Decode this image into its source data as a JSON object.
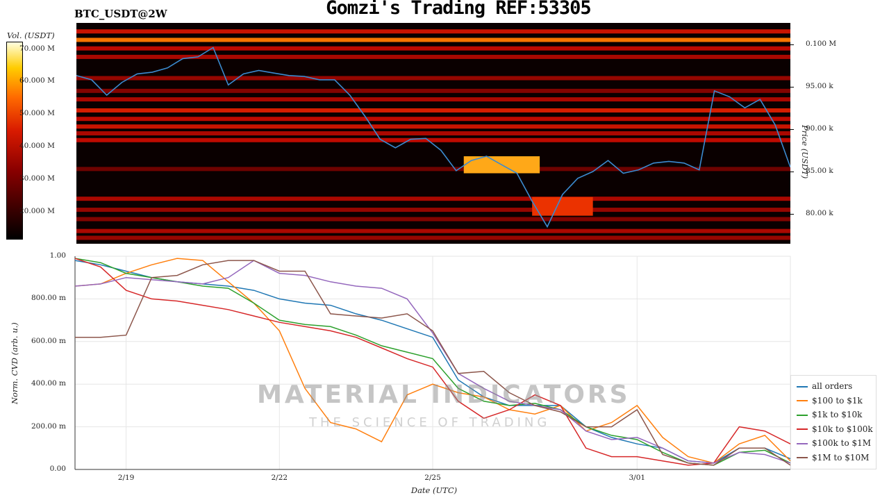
{
  "header": {
    "title": "Gomzi's Trading REF:53305",
    "symbol": "BTC_USDT@2W"
  },
  "colorbar": {
    "label": "Vol. (USDT)",
    "ticks": [
      "70.000 M",
      "60.000 M",
      "50.000 M",
      "40.000 M",
      "30.000 M",
      "20.000 M"
    ]
  },
  "watermark": {
    "main": "MATERIAL INDICATORS",
    "sub": "THE SCIENCE OF TRADING"
  },
  "chart_data": [
    {
      "type": "heatmap",
      "ylabel": "Price (USDT)",
      "yticks": [
        "0.100 M",
        "95.00 k",
        "90.00 k",
        "85.00 k",
        "80.00 k"
      ],
      "ylim": [
        76500,
        102500
      ],
      "colorbar_range": [
        13000,
        73000
      ],
      "price_series": {
        "color": "#3b8bd0",
        "points": [
          [
            0,
            96300
          ],
          [
            1,
            95800
          ],
          [
            2,
            94000
          ],
          [
            3,
            95500
          ],
          [
            4,
            96500
          ],
          [
            5,
            96700
          ],
          [
            6,
            97200
          ],
          [
            7,
            98300
          ],
          [
            8,
            98500
          ],
          [
            9,
            99600
          ],
          [
            10,
            95200
          ],
          [
            11,
            96500
          ],
          [
            12,
            96900
          ],
          [
            13,
            96600
          ],
          [
            14,
            96300
          ],
          [
            15,
            96200
          ],
          [
            16,
            95800
          ],
          [
            17,
            95800
          ],
          [
            18,
            94000
          ],
          [
            19,
            91500
          ],
          [
            20,
            88800
          ],
          [
            21,
            87800
          ],
          [
            22,
            88800
          ],
          [
            23,
            88900
          ],
          [
            24,
            87500
          ],
          [
            25,
            85100
          ],
          [
            26,
            86300
          ],
          [
            27,
            86800
          ],
          [
            28,
            85800
          ],
          [
            29,
            84800
          ],
          [
            30,
            81500
          ],
          [
            31,
            78500
          ],
          [
            32,
            82300
          ],
          [
            33,
            84200
          ],
          [
            34,
            85000
          ],
          [
            35,
            86300
          ],
          [
            36,
            84800
          ],
          [
            37,
            85200
          ],
          [
            38,
            86000
          ],
          [
            39,
            86200
          ],
          [
            40,
            86000
          ],
          [
            41,
            85200
          ],
          [
            42,
            94500
          ],
          [
            43,
            93800
          ],
          [
            44,
            92500
          ],
          [
            45,
            93500
          ],
          [
            46,
            90500
          ],
          [
            47,
            85500
          ]
        ]
      },
      "bands": [
        {
          "price": 101500,
          "intensity": 0.6
        },
        {
          "price": 100500,
          "intensity": 0.85
        },
        {
          "price": 99500,
          "intensity": 0.55
        },
        {
          "price": 98500,
          "intensity": 0.5
        },
        {
          "price": 96000,
          "intensity": 0.45
        },
        {
          "price": 94500,
          "intensity": 0.4
        },
        {
          "price": 93500,
          "intensity": 0.5
        },
        {
          "price": 92200,
          "intensity": 0.65
        },
        {
          "price": 91200,
          "intensity": 0.55
        },
        {
          "price": 90300,
          "intensity": 0.6
        },
        {
          "price": 89500,
          "intensity": 0.5
        },
        {
          "price": 88700,
          "intensity": 0.55
        },
        {
          "price": 85300,
          "intensity": 0.35
        },
        {
          "price": 81800,
          "intensity": 0.5
        },
        {
          "price": 80500,
          "intensity": 0.45
        },
        {
          "price": 79400,
          "intensity": 0.4
        },
        {
          "price": 78000,
          "intensity": 0.5
        },
        {
          "price": 77200,
          "intensity": 0.45
        }
      ],
      "hotspots": [
        {
          "x0": 25.5,
          "x1": 30.5,
          "p0": 84800,
          "p1": 86800,
          "intensity": 0.92
        },
        {
          "x0": 30,
          "x1": 34,
          "p0": 79800,
          "p1": 82000,
          "intensity": 0.75
        }
      ]
    },
    {
      "type": "line",
      "xlabel": "Date (UTC)",
      "ylabel": "Norm. CVD (arb. u.)",
      "x_tick_labels": [
        "2/19",
        "2/22",
        "2/25",
        "3/01"
      ],
      "x_tick_positions": [
        1,
        4,
        7,
        11
      ],
      "xlim": [
        0,
        14
      ],
      "yticks": [
        "0.00",
        "200.00 m",
        "400.00 m",
        "600.00 m",
        "800.00 m",
        "1.00"
      ],
      "ylim": [
        0,
        1
      ],
      "grid": true,
      "legend_position": "bottom-right",
      "series": [
        {
          "name": "all orders",
          "color": "#1f77b4",
          "x": [
            0,
            0.5,
            1,
            1.5,
            2,
            2.5,
            3,
            3.5,
            4,
            4.5,
            5,
            5.5,
            6,
            6.5,
            7,
            7.5,
            8,
            8.5,
            9,
            9.5,
            10,
            10.5,
            11,
            11.5,
            12,
            12.5,
            13,
            13.5,
            14
          ],
          "y": [
            0.98,
            0.96,
            0.93,
            0.9,
            0.88,
            0.87,
            0.86,
            0.84,
            0.8,
            0.78,
            0.77,
            0.73,
            0.7,
            0.66,
            0.62,
            0.42,
            0.34,
            0.3,
            0.3,
            0.3,
            0.2,
            0.15,
            0.12,
            0.1,
            0.04,
            0.03,
            0.1,
            0.1,
            0.05
          ]
        },
        {
          "name": "$100 to $1k",
          "color": "#ff7f0e",
          "x": [
            0,
            0.5,
            1,
            1.5,
            2,
            2.5,
            3,
            3.5,
            4,
            4.5,
            5,
            5.5,
            6,
            6.5,
            7,
            7.5,
            8,
            8.5,
            9,
            9.5,
            10,
            10.5,
            11,
            11.5,
            12,
            12.5,
            13,
            13.5,
            14
          ],
          "y": [
            0.86,
            0.87,
            0.92,
            0.96,
            0.99,
            0.98,
            0.88,
            0.78,
            0.65,
            0.38,
            0.22,
            0.19,
            0.13,
            0.35,
            0.4,
            0.36,
            0.34,
            0.28,
            0.26,
            0.3,
            0.18,
            0.22,
            0.3,
            0.15,
            0.06,
            0.03,
            0.12,
            0.16,
            0.04
          ]
        },
        {
          "name": "$1k to $10k",
          "color": "#2ca02c",
          "x": [
            0,
            0.5,
            1,
            1.5,
            2,
            2.5,
            3,
            3.5,
            4,
            4.5,
            5,
            5.5,
            6,
            6.5,
            7,
            7.5,
            8,
            8.5,
            9,
            9.5,
            10,
            10.5,
            11,
            11.5,
            12,
            12.5,
            13,
            13.5,
            14
          ],
          "y": [
            0.99,
            0.97,
            0.92,
            0.9,
            0.88,
            0.86,
            0.85,
            0.78,
            0.7,
            0.68,
            0.67,
            0.63,
            0.58,
            0.55,
            0.52,
            0.38,
            0.32,
            0.3,
            0.31,
            0.28,
            0.2,
            0.16,
            0.14,
            0.08,
            0.03,
            0.02,
            0.08,
            0.09,
            0.03
          ]
        },
        {
          "name": "$10k to $100k",
          "color": "#d62728",
          "x": [
            0,
            0.5,
            1,
            1.5,
            2,
            2.5,
            3,
            3.5,
            4,
            4.5,
            5,
            5.5,
            6,
            6.5,
            7,
            7.5,
            8,
            8.5,
            9,
            9.5,
            10,
            10.5,
            11,
            11.5,
            12,
            12.5,
            13,
            13.5,
            14
          ],
          "y": [
            0.99,
            0.95,
            0.84,
            0.8,
            0.79,
            0.77,
            0.75,
            0.72,
            0.69,
            0.67,
            0.65,
            0.62,
            0.57,
            0.52,
            0.48,
            0.32,
            0.24,
            0.28,
            0.35,
            0.3,
            0.1,
            0.06,
            0.06,
            0.04,
            0.02,
            0.03,
            0.2,
            0.18,
            0.12
          ]
        },
        {
          "name": "$100k to $1M",
          "color": "#9467bd",
          "x": [
            0,
            0.5,
            1,
            1.5,
            2,
            2.5,
            3,
            3.5,
            4,
            4.5,
            5,
            5.5,
            6,
            6.5,
            7,
            7.5,
            8,
            8.5,
            9,
            9.5,
            10,
            10.5,
            11,
            11.5,
            12,
            12.5,
            13,
            13.5,
            14
          ],
          "y": [
            0.86,
            0.87,
            0.9,
            0.89,
            0.88,
            0.87,
            0.9,
            0.98,
            0.92,
            0.91,
            0.88,
            0.86,
            0.85,
            0.8,
            0.64,
            0.45,
            0.38,
            0.32,
            0.3,
            0.28,
            0.18,
            0.14,
            0.15,
            0.1,
            0.04,
            0.03,
            0.08,
            0.07,
            0.03
          ]
        },
        {
          "name": "$1M to $10M",
          "color": "#8c564b",
          "x": [
            0,
            0.5,
            1,
            1.5,
            2,
            2.5,
            3,
            3.5,
            4,
            4.5,
            5,
            5.5,
            6,
            6.5,
            7,
            7.5,
            8,
            8.5,
            9,
            9.5,
            10,
            10.5,
            11,
            11.5,
            12,
            12.5,
            13,
            13.5,
            14
          ],
          "y": [
            0.62,
            0.62,
            0.63,
            0.9,
            0.91,
            0.96,
            0.98,
            0.98,
            0.93,
            0.93,
            0.73,
            0.72,
            0.71,
            0.73,
            0.65,
            0.45,
            0.46,
            0.36,
            0.3,
            0.27,
            0.2,
            0.2,
            0.28,
            0.07,
            0.03,
            0.02,
            0.1,
            0.1,
            0.02
          ]
        }
      ]
    }
  ]
}
